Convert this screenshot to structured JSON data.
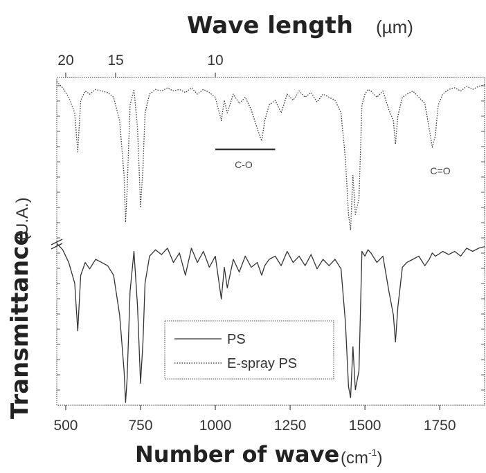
{
  "chart_data": {
    "type": "line",
    "top_axis": {
      "label": "Wave length",
      "unit": "(µm)",
      "ticks": [
        {
          "value": 20,
          "label": "20"
        },
        {
          "value": 15,
          "label": "15"
        },
        {
          "value": 10,
          "label": "10"
        }
      ]
    },
    "xlabel": "Number of wave",
    "xunit": "(cm",
    "xunit_sup": "-1",
    "xunit_close": ")",
    "ylabel": "Transmittance",
    "yunit": "(U.A.)",
    "xlim": [
      470,
      1900
    ],
    "xticks": [
      {
        "value": 500,
        "label": "500"
      },
      {
        "value": 750,
        "label": "750"
      },
      {
        "value": 1000,
        "label": "1000"
      },
      {
        "value": 1250,
        "label": "1250"
      },
      {
        "value": 1500,
        "label": "1500"
      },
      {
        "value": 1750,
        "label": "1750"
      }
    ],
    "annotations": {
      "co_label": "C-O",
      "co_range": [
        1000,
        1200
      ],
      "c_eq_o_label": "C=O"
    },
    "legend_position": "bottom-center",
    "series": [
      {
        "name": "E-spray PS",
        "panel": "top",
        "style": "dotted",
        "color": "#333333",
        "x": [
          470,
          490,
          510,
          530,
          540,
          550,
          565,
          580,
          600,
          620,
          640,
          660,
          680,
          695,
          700,
          705,
          715,
          728,
          740,
          750,
          758,
          765,
          780,
          800,
          820,
          840,
          860,
          880,
          900,
          920,
          940,
          960,
          980,
          1000,
          1020,
          1030,
          1040,
          1060,
          1080,
          1100,
          1120,
          1140,
          1155,
          1165,
          1180,
          1200,
          1220,
          1240,
          1260,
          1280,
          1300,
          1320,
          1340,
          1360,
          1380,
          1400,
          1420,
          1435,
          1445,
          1452,
          1460,
          1468,
          1480,
          1490,
          1500,
          1510,
          1520,
          1540,
          1560,
          1580,
          1595,
          1602,
          1610,
          1625,
          1640,
          1660,
          1680,
          1700,
          1715,
          1725,
          1735,
          1745,
          1760,
          1780,
          1800,
          1820,
          1840,
          1860,
          1880,
          1900
        ],
        "y": [
          100,
          96,
          90,
          80,
          55,
          88,
          94,
          92,
          95,
          94,
          93,
          90,
          75,
          40,
          10,
          30,
          85,
          95,
          70,
          20,
          45,
          80,
          92,
          95,
          94,
          96,
          94,
          95,
          93,
          96,
          92,
          95,
          93,
          90,
          75,
          88,
          80,
          92,
          86,
          90,
          82,
          70,
          62,
          75,
          85,
          88,
          80,
          92,
          88,
          94,
          90,
          93,
          87,
          92,
          90,
          88,
          80,
          50,
          15,
          5,
          40,
          15,
          25,
          85,
          92,
          95,
          94,
          90,
          94,
          82,
          75,
          60,
          78,
          90,
          92,
          94,
          90,
          86,
          70,
          58,
          65,
          85,
          92,
          95,
          96,
          94,
          97,
          95,
          97,
          98
        ]
      },
      {
        "name": "PS",
        "panel": "bottom",
        "style": "solid",
        "color": "#333333",
        "x": [
          470,
          490,
          510,
          530,
          540,
          550,
          565,
          580,
          600,
          620,
          640,
          660,
          680,
          695,
          700,
          705,
          715,
          728,
          740,
          750,
          758,
          765,
          780,
          800,
          820,
          840,
          860,
          880,
          900,
          920,
          940,
          960,
          980,
          1000,
          1020,
          1030,
          1040,
          1060,
          1080,
          1100,
          1120,
          1140,
          1155,
          1165,
          1180,
          1200,
          1220,
          1240,
          1260,
          1280,
          1300,
          1320,
          1340,
          1360,
          1380,
          1400,
          1420,
          1435,
          1445,
          1452,
          1460,
          1468,
          1480,
          1490,
          1500,
          1510,
          1520,
          1540,
          1560,
          1580,
          1595,
          1602,
          1610,
          1625,
          1640,
          1660,
          1680,
          1700,
          1715,
          1725,
          1735,
          1745,
          1760,
          1780,
          1800,
          1820,
          1840,
          1860,
          1880,
          1900
        ],
        "y": [
          100,
          96,
          88,
          75,
          45,
          80,
          88,
          84,
          90,
          88,
          86,
          80,
          55,
          20,
          0,
          15,
          70,
          95,
          60,
          12,
          38,
          75,
          92,
          96,
          93,
          97,
          88,
          94,
          80,
          97,
          88,
          95,
          85,
          92,
          65,
          85,
          72,
          90,
          82,
          92,
          85,
          88,
          80,
          86,
          90,
          92,
          86,
          95,
          88,
          92,
          86,
          93,
          84,
          90,
          86,
          90,
          84,
          50,
          10,
          3,
          35,
          8,
          20,
          95,
          92,
          96,
          94,
          88,
          92,
          70,
          55,
          38,
          60,
          85,
          88,
          90,
          92,
          86,
          90,
          94,
          92,
          93,
          95,
          93,
          95,
          92,
          97,
          95,
          97,
          98
        ]
      }
    ]
  }
}
